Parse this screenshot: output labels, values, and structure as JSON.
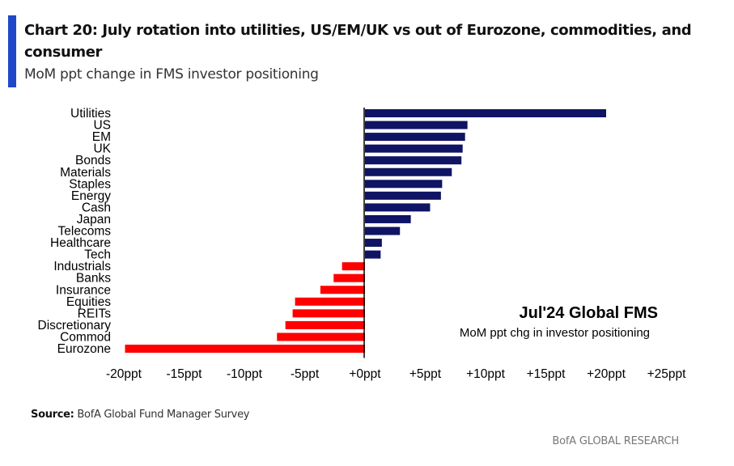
{
  "header": {
    "title": "Chart 20: July rotation into utilities, US/EM/UK vs out of Eurozone, commodities, and consumer",
    "subtitle": "MoM ppt change in FMS investor positioning"
  },
  "footer": {
    "source_label": "Source:",
    "source_text": " BofA Global Fund Manager Survey",
    "brand": "BofA GLOBAL RESEARCH"
  },
  "colors": {
    "positive": "#0f1464",
    "negative": "#ff0000",
    "accent": "#1e48c8"
  },
  "chart_data": {
    "type": "bar",
    "orientation": "horizontal",
    "title": "Jul'24 Global FMS",
    "subtitle": "MoM ppt chg in investor positioning",
    "xlabel": "",
    "ylabel": "",
    "xlim": [
      -20,
      25
    ],
    "x_ticks": [
      -20,
      -15,
      -10,
      -5,
      0,
      5,
      10,
      15,
      20,
      25
    ],
    "x_tick_labels": [
      "-20ppt",
      "-15ppt",
      "-10ppt",
      "-5ppt",
      "+0ppt",
      "+5ppt",
      "+10ppt",
      "+15ppt",
      "+20ppt",
      "+25ppt"
    ],
    "grid": false,
    "legend": "none",
    "annotation_position": "bottom-right",
    "categories": [
      "Utilities",
      "US",
      "EM",
      "UK",
      "Bonds",
      "Materials",
      "Staples",
      "Energy",
      "Cash",
      "Japan",
      "Telecoms",
      "Healthcare",
      "Tech",
      "Industrials",
      "Banks",
      "Insurance",
      "Equities",
      "REITs",
      "Discretionary",
      "Commod",
      "Eurozone"
    ],
    "values": [
      20.0,
      8.5,
      8.3,
      8.1,
      8.0,
      7.2,
      6.4,
      6.3,
      5.4,
      3.8,
      2.9,
      1.4,
      1.3,
      -1.9,
      -2.6,
      -3.7,
      -5.8,
      -6.0,
      -6.6,
      -7.3,
      -19.9
    ]
  }
}
